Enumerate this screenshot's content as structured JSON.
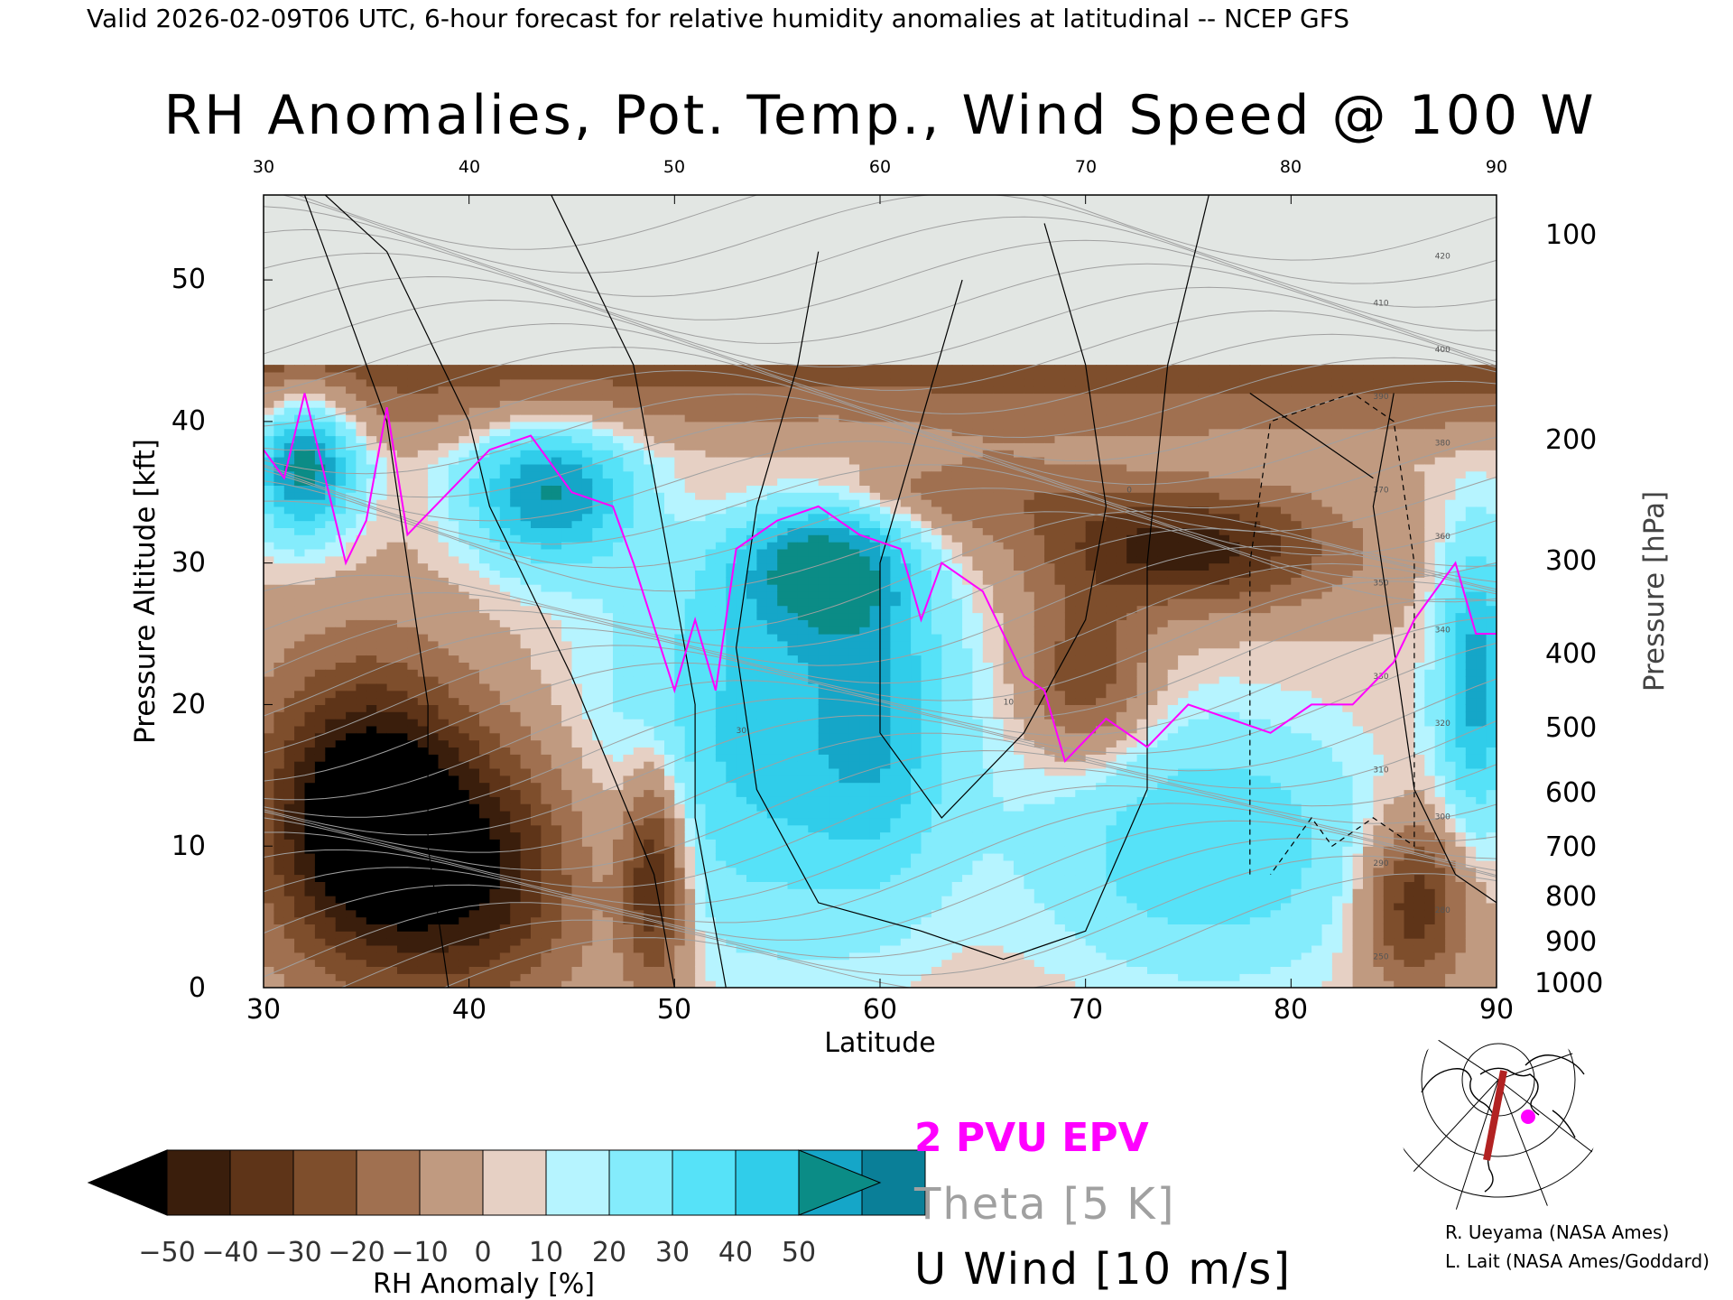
{
  "header": "Valid 2026-02-09T06 UTC, 6-hour forecast for relative humidity anomalies at latitudinal -- NCEP GFS",
  "colors": {
    "anomaly_negative": [
      "#000000",
      "#3a1e0c",
      "#5e3418",
      "#7e4e2c",
      "#a07050",
      "#c09a80",
      "#e6d0c4"
    ],
    "anomaly_positive": [
      "#e4fbff",
      "#b6f4ff",
      "#84ecfc",
      "#56e2f8",
      "#30cdea",
      "#15a6c8",
      "#0a7f98"
    ],
    "anomaly_high_overflow": "#0b8c86",
    "stratosphere": "#e2e6e3",
    "epv_line": "#ff00ff",
    "theta_line": "#a0a0a0",
    "wind_line": "#000000"
  },
  "chart_data": {
    "type": "heatmap",
    "title": "RH Anomalies, Pot. Temp., Wind Speed @ 100 W",
    "xlabel": "Latitude",
    "ylabel": "Pressure Altitude [kft]",
    "ylabel_right": "Pressure [hPa]",
    "x_ticks": [
      "30",
      "40",
      "50",
      "60",
      "70",
      "80",
      "90"
    ],
    "x_ticks_top": [
      "30",
      "40",
      "50",
      "60",
      "70",
      "80",
      "90"
    ],
    "y_ticks": [
      "0",
      "10",
      "20",
      "30",
      "40",
      "50"
    ],
    "pressure_ticks": [
      "100",
      "200",
      "300",
      "400",
      "500",
      "600",
      "700",
      "800",
      "900",
      "1000"
    ],
    "xlim": [
      30,
      90
    ],
    "ylim": [
      0,
      56
    ],
    "colorbar": {
      "label": "RH Anomaly [%]",
      "tick_labels": [
        "−50",
        "−40",
        "−30",
        "−20",
        "−10",
        "0",
        "10",
        "20",
        "30",
        "40",
        "50"
      ],
      "levels": [
        -50,
        -40,
        -30,
        -20,
        -10,
        0,
        10,
        20,
        30,
        40,
        50
      ]
    },
    "legend": {
      "epv": "2 PVU EPV",
      "theta": "Theta [5 K]",
      "wind": "U Wind [10 m/s]"
    },
    "theta_contour_labels": [
      "250",
      "280",
      "290",
      "300",
      "310",
      "320",
      "330",
      "340",
      "350",
      "360",
      "370",
      "380",
      "390",
      "400",
      "410",
      "420"
    ],
    "wind_contour_labels": [
      "0",
      "10",
      "30"
    ],
    "epv_2pvu_kft": [
      {
        "lat": 30,
        "kft": 38
      },
      {
        "lat": 31,
        "kft": 36
      },
      {
        "lat": 32,
        "kft": 42
      },
      {
        "lat": 33,
        "kft": 36
      },
      {
        "lat": 34,
        "kft": 30
      },
      {
        "lat": 35,
        "kft": 33
      },
      {
        "lat": 36,
        "kft": 41
      },
      {
        "lat": 37,
        "kft": 32
      },
      {
        "lat": 39,
        "kft": 35
      },
      {
        "lat": 41,
        "kft": 38
      },
      {
        "lat": 43,
        "kft": 39
      },
      {
        "lat": 45,
        "kft": 35
      },
      {
        "lat": 47,
        "kft": 34
      },
      {
        "lat": 48,
        "kft": 30
      },
      {
        "lat": 50,
        "kft": 21
      },
      {
        "lat": 51,
        "kft": 26
      },
      {
        "lat": 52,
        "kft": 21
      },
      {
        "lat": 53,
        "kft": 31
      },
      {
        "lat": 55,
        "kft": 33
      },
      {
        "lat": 57,
        "kft": 34
      },
      {
        "lat": 59,
        "kft": 32
      },
      {
        "lat": 61,
        "kft": 31
      },
      {
        "lat": 62,
        "kft": 26
      },
      {
        "lat": 63,
        "kft": 30
      },
      {
        "lat": 65,
        "kft": 28
      },
      {
        "lat": 67,
        "kft": 22
      },
      {
        "lat": 68,
        "kft": 21
      },
      {
        "lat": 69,
        "kft": 16
      },
      {
        "lat": 71,
        "kft": 19
      },
      {
        "lat": 73,
        "kft": 17
      },
      {
        "lat": 75,
        "kft": 20
      },
      {
        "lat": 77,
        "kft": 19
      },
      {
        "lat": 79,
        "kft": 18
      },
      {
        "lat": 81,
        "kft": 20
      },
      {
        "lat": 83,
        "kft": 20
      },
      {
        "lat": 85,
        "kft": 23
      },
      {
        "lat": 86,
        "kft": 26
      },
      {
        "lat": 88,
        "kft": 30
      },
      {
        "lat": 89,
        "kft": 25
      },
      {
        "lat": 90,
        "kft": 25
      }
    ]
  },
  "credits": {
    "line1": "R. Ueyama (NASA Ames)",
    "line2": "L. Lait (NASA Ames/Goddard)"
  }
}
